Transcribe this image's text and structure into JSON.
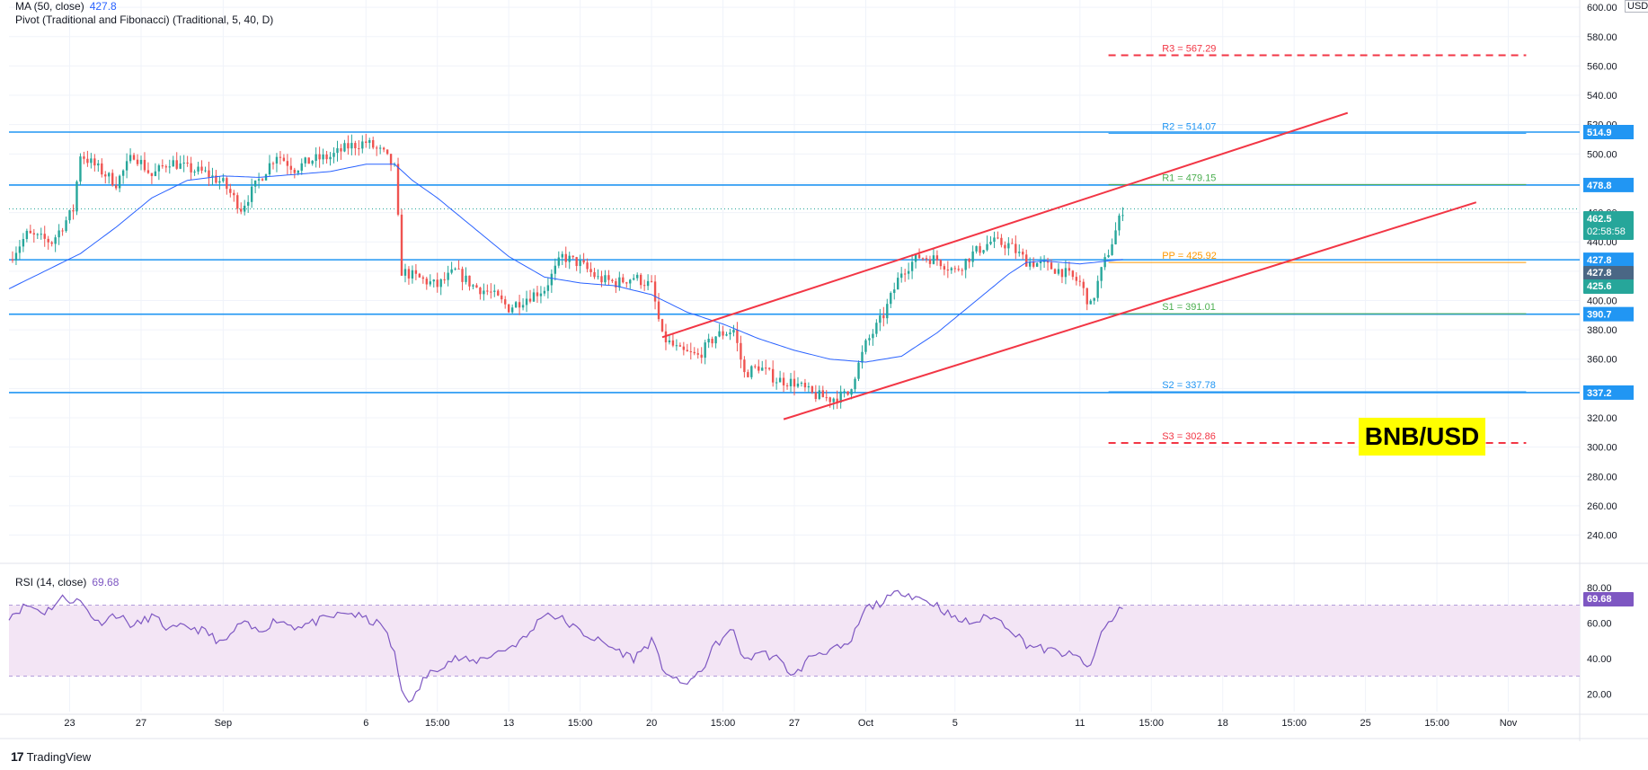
{
  "ma_indicator": {
    "label": "MA (50, close)",
    "value": "427.8"
  },
  "pivot_indicator": {
    "label": "Pivot (Traditional and Fibonacci) (Traditional, 5, 40, D)"
  },
  "rsi_indicator": {
    "label": "RSI (14, close)",
    "value": "69.68"
  },
  "brand": {
    "logo_text": "TradingView"
  },
  "badge": {
    "text": "BNB/USD"
  },
  "currency": "USD",
  "colors": {
    "up": "#26a69a",
    "down": "#ef5350",
    "ma": "#2962ff",
    "hline": "#2196f3",
    "channel": "#f23645",
    "rsi": "#7e57c2",
    "rsi_band": "#f3e5f5",
    "pivot_r": "#f23645",
    "pivot_blue": "#2196f3",
    "pivot_green": "#4caf50",
    "pivot_orange": "#ff9800"
  },
  "price_tags": {
    "current": "462.5",
    "countdown": "02:58:58",
    "ma": "427.8",
    "close_prev": "425.6",
    "rsi": "69.68"
  },
  "chart_data": {
    "type": "candlestick",
    "price_axis": {
      "range": [
        225,
        605
      ],
      "ticks": [
        600,
        580,
        560,
        540,
        520,
        500,
        480,
        460,
        440,
        420,
        400,
        380,
        360,
        340,
        320,
        300,
        280,
        260,
        240
      ],
      "tick_labels": [
        "600.00",
        "580.00",
        "560.00",
        "540.00",
        "520.00",
        "500.00",
        "480.00",
        "460.00",
        "440.00",
        "420.00",
        "400.00",
        "380.00",
        "360.00",
        "340.00",
        "320.00",
        "300.00",
        "280.00",
        "260.00",
        "240.00"
      ]
    },
    "rsi_axis": {
      "range": [
        10,
        90
      ],
      "ticks": [
        80,
        60,
        40,
        20
      ],
      "tick_labels": [
        "80.00",
        "60.00",
        "40.00",
        "20.00"
      ],
      "band": [
        30,
        70
      ]
    },
    "time_axis": {
      "labels": [
        "23",
        "27",
        "Sep",
        "6",
        "15:00",
        "13",
        "15:00",
        "20",
        "15:00",
        "27",
        "Oct",
        "5",
        "11",
        "15:00",
        "18",
        "15:00",
        "25",
        "15:00",
        "Nov"
      ],
      "positions": [
        1.7,
        3.7,
        6.0,
        10.0,
        12.0,
        14.0,
        16.0,
        18.0,
        20.0,
        22.0,
        24.0,
        26.5,
        30.0,
        32.0,
        34.0,
        36.0,
        38.0,
        40.0,
        42.0
      ]
    },
    "horizontal_levels": [
      {
        "price": 514.9,
        "label": "514.9"
      },
      {
        "price": 478.8,
        "label": "478.8"
      },
      {
        "price": 427.8,
        "label": "427.8"
      },
      {
        "price": 390.7,
        "label": "390.7"
      },
      {
        "price": 337.2,
        "label": "337.2"
      }
    ],
    "pivots": [
      {
        "name": "R3",
        "label": "R3 = 567.29",
        "value": 567.29,
        "dashed": true,
        "color": "#f23645"
      },
      {
        "name": "R2",
        "label": "R2 = 514.07",
        "value": 514.07,
        "dashed": false,
        "color": "#2196f3"
      },
      {
        "name": "R1",
        "label": "R1 = 479.15",
        "value": 479.15,
        "dashed": false,
        "color": "#4caf50"
      },
      {
        "name": "PP",
        "label": "PP = 425.92",
        "value": 425.92,
        "dashed": false,
        "color": "#ff9800"
      },
      {
        "name": "S1",
        "label": "S1 = 391.01",
        "value": 391.01,
        "dashed": false,
        "color": "#4caf50"
      },
      {
        "name": "S2",
        "label": "S2 = 337.78",
        "value": 337.78,
        "dashed": false,
        "color": "#2196f3"
      },
      {
        "name": "S3",
        "label": "S3 = 302.86",
        "value": 302.86,
        "dashed": true,
        "color": "#f23645"
      }
    ],
    "channel": [
      {
        "from": [
          18.3,
          375
        ],
        "to": [
          37.5,
          528
        ]
      },
      {
        "from": [
          21.7,
          319
        ],
        "to": [
          41.1,
          467
        ]
      }
    ],
    "anchors_close": [
      [
        0,
        428
      ],
      [
        0.5,
        445
      ],
      [
        1.2,
        440
      ],
      [
        1.8,
        462
      ],
      [
        2.0,
        500
      ],
      [
        2.5,
        490
      ],
      [
        3.0,
        480
      ],
      [
        3.5,
        500
      ],
      [
        4.0,
        485
      ],
      [
        4.5,
        495
      ],
      [
        5.0,
        490
      ],
      [
        5.5,
        487
      ],
      [
        6.0,
        480
      ],
      [
        6.5,
        463
      ],
      [
        7.0,
        482
      ],
      [
        7.5,
        500
      ],
      [
        8.0,
        490
      ],
      [
        8.5,
        496
      ],
      [
        9.0,
        498
      ],
      [
        9.5,
        505
      ],
      [
        10.0,
        508
      ],
      [
        10.5,
        500
      ],
      [
        10.8,
        490
      ],
      [
        11.0,
        420
      ],
      [
        11.5,
        415
      ],
      [
        12.0,
        410
      ],
      [
        12.5,
        420
      ],
      [
        13.0,
        410
      ],
      [
        13.5,
        405
      ],
      [
        14.0,
        395
      ],
      [
        14.5,
        402
      ],
      [
        15.0,
        408
      ],
      [
        15.5,
        430
      ],
      [
        16.0,
        425
      ],
      [
        16.5,
        415
      ],
      [
        17.0,
        412
      ],
      [
        17.5,
        416
      ],
      [
        18.0,
        410
      ],
      [
        18.3,
        375
      ],
      [
        18.8,
        365
      ],
      [
        19.3,
        362
      ],
      [
        19.8,
        376
      ],
      [
        20.3,
        380
      ],
      [
        20.6,
        350
      ],
      [
        21.0,
        355
      ],
      [
        21.5,
        346
      ],
      [
        22.0,
        344
      ],
      [
        22.5,
        336
      ],
      [
        23.0,
        333
      ],
      [
        23.5,
        336
      ],
      [
        24.0,
        370
      ],
      [
        24.5,
        390
      ],
      [
        25.0,
        420
      ],
      [
        25.5,
        430
      ],
      [
        26.0,
        428
      ],
      [
        26.5,
        420
      ],
      [
        27.0,
        432
      ],
      [
        27.5,
        440
      ],
      [
        28.0,
        438
      ],
      [
        28.5,
        427
      ],
      [
        29.0,
        424
      ],
      [
        29.5,
        420
      ],
      [
        30.0,
        412
      ],
      [
        30.3,
        396
      ],
      [
        30.6,
        420
      ],
      [
        30.9,
        440
      ],
      [
        31.2,
        462
      ]
    ],
    "anchors_ma": [
      [
        0,
        408
      ],
      [
        1.0,
        420
      ],
      [
        2.0,
        432
      ],
      [
        3.0,
        450
      ],
      [
        4.0,
        470
      ],
      [
        5.0,
        482
      ],
      [
        6.0,
        485
      ],
      [
        7.0,
        484
      ],
      [
        8.0,
        486
      ],
      [
        9.0,
        488
      ],
      [
        10.0,
        493
      ],
      [
        10.8,
        493
      ],
      [
        11.3,
        482
      ],
      [
        12.0,
        470
      ],
      [
        13.0,
        450
      ],
      [
        14.0,
        430
      ],
      [
        15.0,
        416
      ],
      [
        16.0,
        412
      ],
      [
        17.0,
        410
      ],
      [
        18.0,
        404
      ],
      [
        19.0,
        392
      ],
      [
        20.0,
        384
      ],
      [
        21.0,
        374
      ],
      [
        22.0,
        366
      ],
      [
        23.0,
        360
      ],
      [
        24.0,
        358
      ],
      [
        25.0,
        362
      ],
      [
        26.0,
        378
      ],
      [
        27.0,
        398
      ],
      [
        28.0,
        418
      ],
      [
        28.5,
        426
      ],
      [
        29.0,
        427
      ],
      [
        30.0,
        425
      ],
      [
        31.2,
        428
      ]
    ],
    "anchors_rsi": [
      [
        0,
        64
      ],
      [
        0.5,
        70
      ],
      [
        1.0,
        66
      ],
      [
        1.5,
        74
      ],
      [
        2.0,
        72
      ],
      [
        2.5,
        60
      ],
      [
        3.0,
        65
      ],
      [
        3.5,
        58
      ],
      [
        4.0,
        64
      ],
      [
        4.5,
        56
      ],
      [
        5.0,
        58
      ],
      [
        5.5,
        55
      ],
      [
        6.0,
        48
      ],
      [
        6.5,
        60
      ],
      [
        7.0,
        55
      ],
      [
        7.5,
        62
      ],
      [
        8.0,
        58
      ],
      [
        8.5,
        60
      ],
      [
        9.0,
        63
      ],
      [
        9.5,
        66
      ],
      [
        10.0,
        62
      ],
      [
        10.5,
        58
      ],
      [
        10.8,
        42
      ],
      [
        11.0,
        22
      ],
      [
        11.3,
        15
      ],
      [
        11.6,
        28
      ],
      [
        12.0,
        35
      ],
      [
        12.5,
        40
      ],
      [
        13.0,
        38
      ],
      [
        13.5,
        42
      ],
      [
        14.0,
        46
      ],
      [
        14.5,
        52
      ],
      [
        15.0,
        66
      ],
      [
        15.5,
        62
      ],
      [
        16.0,
        55
      ],
      [
        16.5,
        50
      ],
      [
        17.0,
        45
      ],
      [
        17.5,
        40
      ],
      [
        18.0,
        50
      ],
      [
        18.3,
        35
      ],
      [
        18.8,
        25
      ],
      [
        19.3,
        30
      ],
      [
        19.8,
        48
      ],
      [
        20.3,
        56
      ],
      [
        20.6,
        38
      ],
      [
        21.0,
        44
      ],
      [
        21.5,
        40
      ],
      [
        22.0,
        30
      ],
      [
        22.5,
        42
      ],
      [
        23.0,
        45
      ],
      [
        23.5,
        46
      ],
      [
        24.0,
        68
      ],
      [
        24.5,
        72
      ],
      [
        25.0,
        78
      ],
      [
        25.5,
        74
      ],
      [
        26.0,
        70
      ],
      [
        26.5,
        62
      ],
      [
        27.0,
        60
      ],
      [
        27.5,
        64
      ],
      [
        28.0,
        58
      ],
      [
        28.5,
        48
      ],
      [
        29.0,
        45
      ],
      [
        29.5,
        43
      ],
      [
        30.0,
        40
      ],
      [
        30.3,
        34
      ],
      [
        30.6,
        55
      ],
      [
        30.9,
        62
      ],
      [
        31.2,
        70
      ]
    ]
  }
}
